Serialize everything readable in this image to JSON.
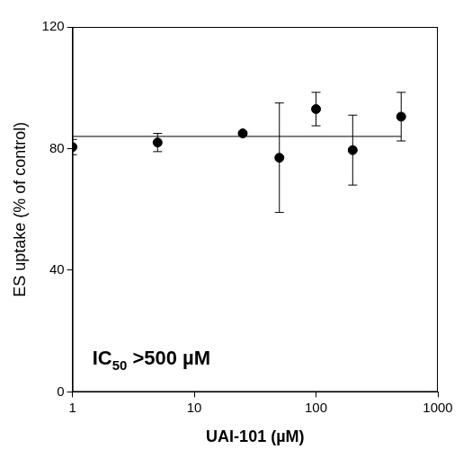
{
  "chart_data": {
    "type": "scatter",
    "x_label": "UAI-101 (µM)",
    "y_label": "ES uptake (% of control)",
    "annotation": {
      "text": "IC50 >500 µM",
      "subscript": "50"
    },
    "x": [
      1,
      5,
      25,
      50,
      100,
      200,
      500
    ],
    "values": [
      80.5,
      82,
      85,
      77,
      93,
      79.5,
      90.5
    ],
    "errors": [
      2.5,
      3,
      0.5,
      18,
      5.5,
      11.5,
      8
    ],
    "fit": 84,
    "color": "#000000",
    "marker": "circle",
    "log": "x",
    "grid": false,
    "xlim": [
      1,
      1000
    ],
    "xticks": [
      1,
      10,
      100,
      1000
    ],
    "ylim": [
      0,
      120
    ],
    "yticks": [
      0,
      40,
      80,
      120
    ]
  }
}
